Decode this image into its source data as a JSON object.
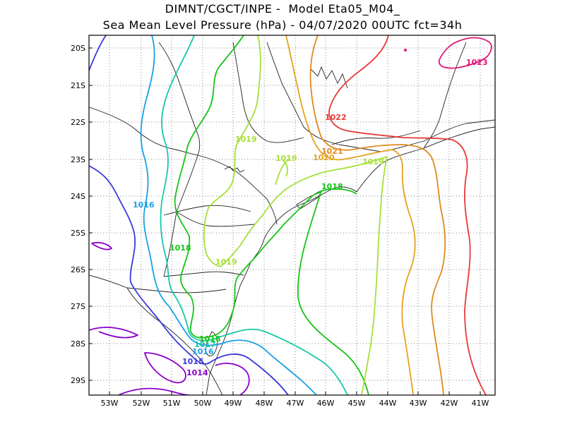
{
  "header": {
    "line1": "DIMNT/CGCT/INPE -  Model Eta05_M04_",
    "line2": "Sea Mean Level Pressure (hPa) - 04/07/2020 00UTC fct=34h"
  },
  "axes": {
    "lat_labels": [
      "20S",
      "21S",
      "22S",
      "23S",
      "24S",
      "25S",
      "26S",
      "27S",
      "28S",
      "29S"
    ],
    "lon_labels": [
      "53W",
      "52W",
      "51W",
      "50W",
      "49W",
      "48W",
      "47W",
      "46W",
      "45W",
      "44W",
      "43W",
      "42W",
      "41W"
    ]
  },
  "colors": {
    "1014": "#8a00cc",
    "1015": "#3a3adb",
    "1016": "#1aa0e8",
    "1017": "#15c8a8",
    "1018": "#18c418",
    "1019": "#a6e03a",
    "1020": "#e6a21e",
    "1021": "#e08a1e",
    "1022": "#e83a3a",
    "1023": "#e0187a"
  },
  "contour_labels": [
    {
      "text": "1023",
      "level": "1023"
    },
    {
      "text": "1022",
      "level": "1022"
    },
    {
      "text": "1021",
      "level": "1021"
    },
    {
      "text": "1020",
      "level": "1020"
    },
    {
      "text": "1019",
      "level": "1019"
    },
    {
      "text": "1019",
      "level": "1019"
    },
    {
      "text": "1019",
      "level": "1019"
    },
    {
      "text": "1019",
      "level": "1019"
    },
    {
      "text": "1018",
      "level": "1018"
    },
    {
      "text": "1018",
      "level": "1018"
    },
    {
      "text": "1018",
      "level": "1018"
    },
    {
      "text": "1017",
      "level": "1017"
    },
    {
      "text": "1016",
      "level": "1016"
    },
    {
      "text": "1016",
      "level": "1016"
    },
    {
      "text": "1015",
      "level": "1015"
    },
    {
      "text": "1014",
      "level": "1014"
    }
  ]
}
